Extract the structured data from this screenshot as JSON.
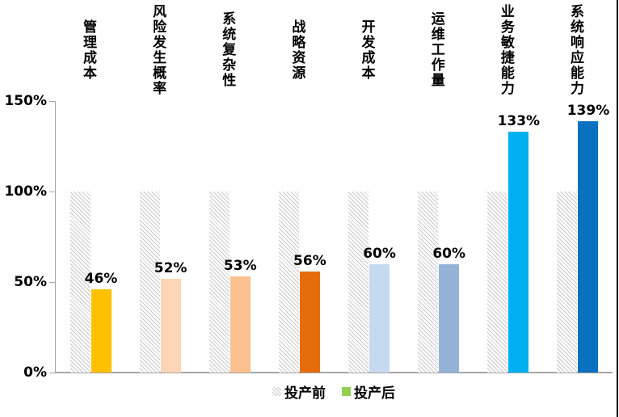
{
  "chart_data": {
    "type": "bar",
    "title": "",
    "categories": [
      "管理成本",
      "风险发生概率",
      "系统复杂性",
      "战略资源",
      "开发成本",
      "运维工作量",
      "业务敏捷能力",
      "系统响应能力"
    ],
    "series": [
      {
        "name": "投产前",
        "values": [
          100,
          100,
          100,
          100,
          100,
          100,
          100,
          100
        ],
        "style": "hatched-gray"
      },
      {
        "name": "投产后",
        "values": [
          46,
          52,
          53,
          56,
          60,
          60,
          133,
          139
        ],
        "bar_colors": [
          "#FFC000",
          "#FCD5B4",
          "#FAC090",
          "#E46C0A",
          "#C6D9F0",
          "#95B3D7",
          "#00B0F0",
          "#0A70C0"
        ]
      }
    ],
    "value_labels": [
      "46%",
      "52%",
      "53%",
      "56%",
      "60%",
      "60%",
      "133%",
      "139%"
    ],
    "yticks": [
      {
        "label": "0%",
        "value": 0
      },
      {
        "label": "50%",
        "value": 50
      },
      {
        "label": "100%",
        "value": 100
      },
      {
        "label": "150%",
        "value": 150
      }
    ],
    "ylim": [
      0,
      150
    ],
    "grid": false,
    "legend_position": "bottom",
    "legend": [
      {
        "label": "投产前",
        "swatch": "hatch"
      },
      {
        "label": "投产后",
        "swatch": "solid",
        "swatch_color": "#92D050"
      }
    ],
    "colors": {
      "axis": "#A6A6A6",
      "hatch_line": "#C8C8C8",
      "text": "#000000",
      "legend_green": "#92D050"
    }
  }
}
